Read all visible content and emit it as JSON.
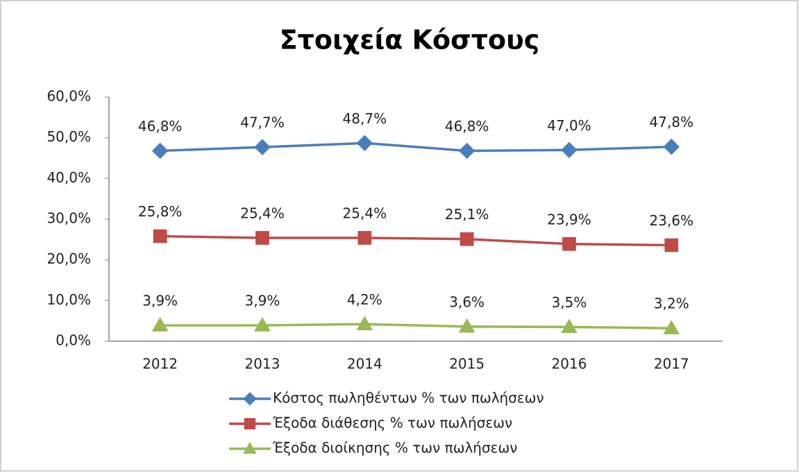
{
  "chart_data": {
    "type": "line",
    "title": "Στοιχεία Κόστους",
    "categories": [
      "2012",
      "2013",
      "2014",
      "2015",
      "2016",
      "2017"
    ],
    "series": [
      {
        "name": "Κόστος πωληθέντων % των πωλήσεων",
        "color": "#4a7ebb",
        "marker": "diamond",
        "values": [
          46.8,
          47.7,
          48.7,
          46.8,
          47.0,
          47.8
        ],
        "value_labels": [
          "46,8%",
          "47,7%",
          "48,7%",
          "46,8%",
          "47,0%",
          "47,8%"
        ]
      },
      {
        "name": "Έξοδα διάθεσης % των πωλήσεων",
        "color": "#be4b48",
        "marker": "square",
        "values": [
          25.8,
          25.4,
          25.4,
          25.1,
          23.9,
          23.6
        ],
        "value_labels": [
          "25,8%",
          "25,4%",
          "25,4%",
          "25,1%",
          "23,9%",
          "23,6%"
        ]
      },
      {
        "name": "Έξοδα διοίκησης % των πωλήσεων",
        "color": "#98b954",
        "marker": "triangle",
        "values": [
          3.9,
          3.9,
          4.2,
          3.6,
          3.5,
          3.2
        ],
        "value_labels": [
          "3,9%",
          "3,9%",
          "4,2%",
          "3,6%",
          "3,5%",
          "3,2%"
        ]
      }
    ],
    "ylim": [
      0,
      60
    ],
    "yticks": [
      {
        "value": 0,
        "label": "0,0%"
      },
      {
        "value": 10,
        "label": "10,0%"
      },
      {
        "value": 20,
        "label": "20,0%"
      },
      {
        "value": 30,
        "label": "30,0%"
      },
      {
        "value": 40,
        "label": "40,0%"
      },
      {
        "value": 50,
        "label": "50,0%"
      },
      {
        "value": 60,
        "label": "60,0%"
      }
    ],
    "grid": false,
    "legend": "bottom"
  }
}
